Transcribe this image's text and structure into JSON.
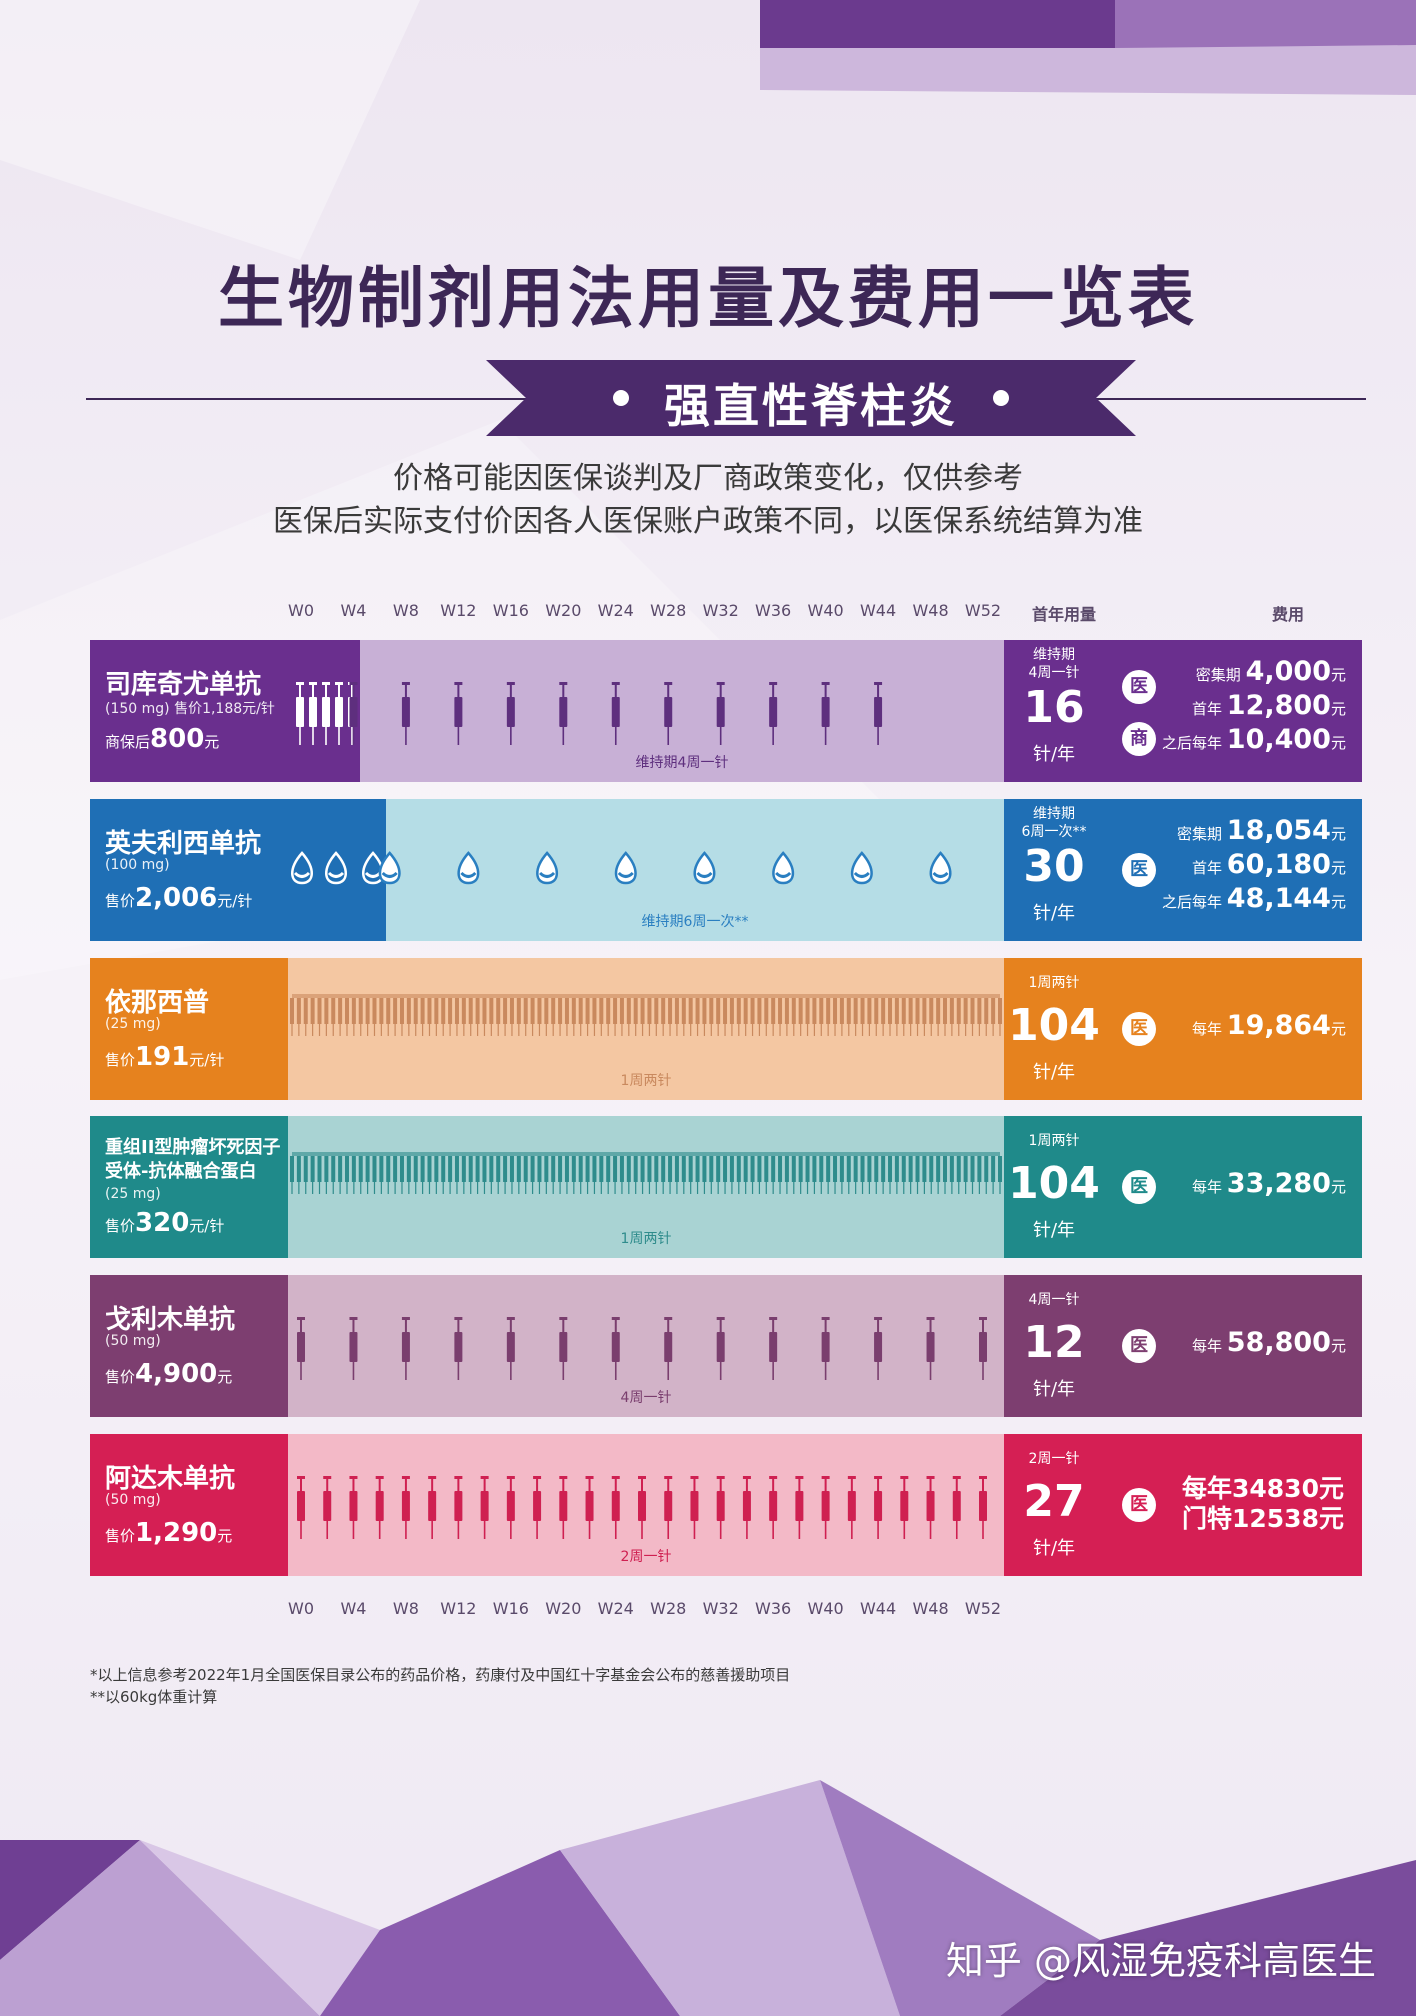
{
  "title": "生物制剂用法用量及费用一览表",
  "subtitle": "强直性脊柱炎",
  "notes": [
    "价格可能因医保谈判及厂商政策变化，仅供参考",
    "医保后实际支付价因各人医保账户政策不同，以医保系统结算为准"
  ],
  "weeks": [
    "W0",
    "W4",
    "W8",
    "W12",
    "W16",
    "W20",
    "W24",
    "W28",
    "W32",
    "W36",
    "W40",
    "W44",
    "W48",
    "W52"
  ],
  "headers": {
    "usage": "首年用量",
    "cost": "费用"
  },
  "badges": {
    "med": "医",
    "com": "商"
  },
  "drugs": [
    {
      "name": "司库奇尤单抗",
      "dose": "(150 mg) 售价1,188元/针",
      "price_prefix": "商保后",
      "price": "800",
      "price_unit": "元",
      "timeline_label": "维持期4周一针",
      "usage_freq": "维持期\n4周一针",
      "usage_num": "16",
      "usage_unit": "针/年",
      "costs": [
        {
          "label": "密集期",
          "value": "4,000",
          "unit": "元"
        },
        {
          "label": "首年",
          "value": "12,800",
          "unit": "元"
        },
        {
          "label": "之后每年",
          "value": "10,400",
          "unit": "元"
        }
      ],
      "colors": {
        "dark": "#6a2f8e",
        "light": "#c8b0d6",
        "mark": "#5e2f7e"
      }
    },
    {
      "name": "英夫利西单抗",
      "dose": "(100 mg)",
      "price_prefix": "售价",
      "price": "2,006",
      "price_unit": "元/针",
      "timeline_label": "维持期6周一次**",
      "usage_freq": "维持期\n6周一次**",
      "usage_num": "30",
      "usage_unit": "针/年",
      "costs": [
        {
          "label": "密集期",
          "value": "18,054",
          "unit": "元"
        },
        {
          "label": "首年",
          "value": "60,180",
          "unit": "元"
        },
        {
          "label": "之后每年",
          "value": "48,144",
          "unit": "元"
        }
      ],
      "colors": {
        "dark": "#1f6fb5",
        "light": "#b5dde6",
        "mark": "#2a7fc1"
      }
    },
    {
      "name": "依那西普",
      "dose": "(25 mg)",
      "price_prefix": "售价",
      "price": "191",
      "price_unit": "元/针",
      "timeline_label": "1周两针",
      "usage_freq": "1周两针",
      "usage_num": "104",
      "usage_unit": "针/年",
      "costs": [
        {
          "label": "每年",
          "value": "19,864",
          "unit": "元"
        }
      ],
      "colors": {
        "dark": "#e6821e",
        "light": "#f4c7a2",
        "mark": "#c9895e"
      }
    },
    {
      "name": "重组II型肿瘤坏死因子受体-抗体融合蛋白",
      "dose": "(25 mg)",
      "price_prefix": "售价",
      "price": "320",
      "price_unit": "元/针",
      "timeline_label": "1周两针",
      "usage_freq": "1周两针",
      "usage_num": "104",
      "usage_unit": "针/年",
      "costs": [
        {
          "label": "每年",
          "value": "33,280",
          "unit": "元"
        }
      ],
      "colors": {
        "dark": "#1f8a8a",
        "light": "#a9d3d3",
        "mark": "#2f8c8c"
      }
    },
    {
      "name": "戈利木单抗",
      "dose": "(50 mg)",
      "price_prefix": "售价",
      "price": "4,900",
      "price_unit": "元",
      "timeline_label": "4周一针",
      "usage_freq": "4周一针",
      "usage_num": "12",
      "usage_unit": "针/年",
      "costs": [
        {
          "label": "每年",
          "value": "58,800",
          "unit": "元"
        }
      ],
      "colors": {
        "dark": "#7d3e70",
        "light": "#d2b3c8",
        "mark": "#7a3e6e"
      }
    },
    {
      "name": "阿达木单抗",
      "dose": "(50 mg)",
      "price_prefix": "售价",
      "price": "1,290",
      "price_unit": "元",
      "timeline_label": "2周一针",
      "usage_freq": "2周一针",
      "usage_num": "27",
      "usage_unit": "针/年",
      "costs_text": [
        "每年34830元",
        "门特12538元"
      ],
      "colors": {
        "dark": "#d51f54",
        "light": "#f3b9c7",
        "mark": "#cf2051"
      }
    }
  ],
  "footnotes": [
    "*以上信息参考2022年1月全国医保目录公布的药品价格，药康付及中国红十字基金会公布的慈善援助项目",
    "**以60kg体重计算"
  ],
  "watermark": "知乎 @风湿免疫科高医生"
}
